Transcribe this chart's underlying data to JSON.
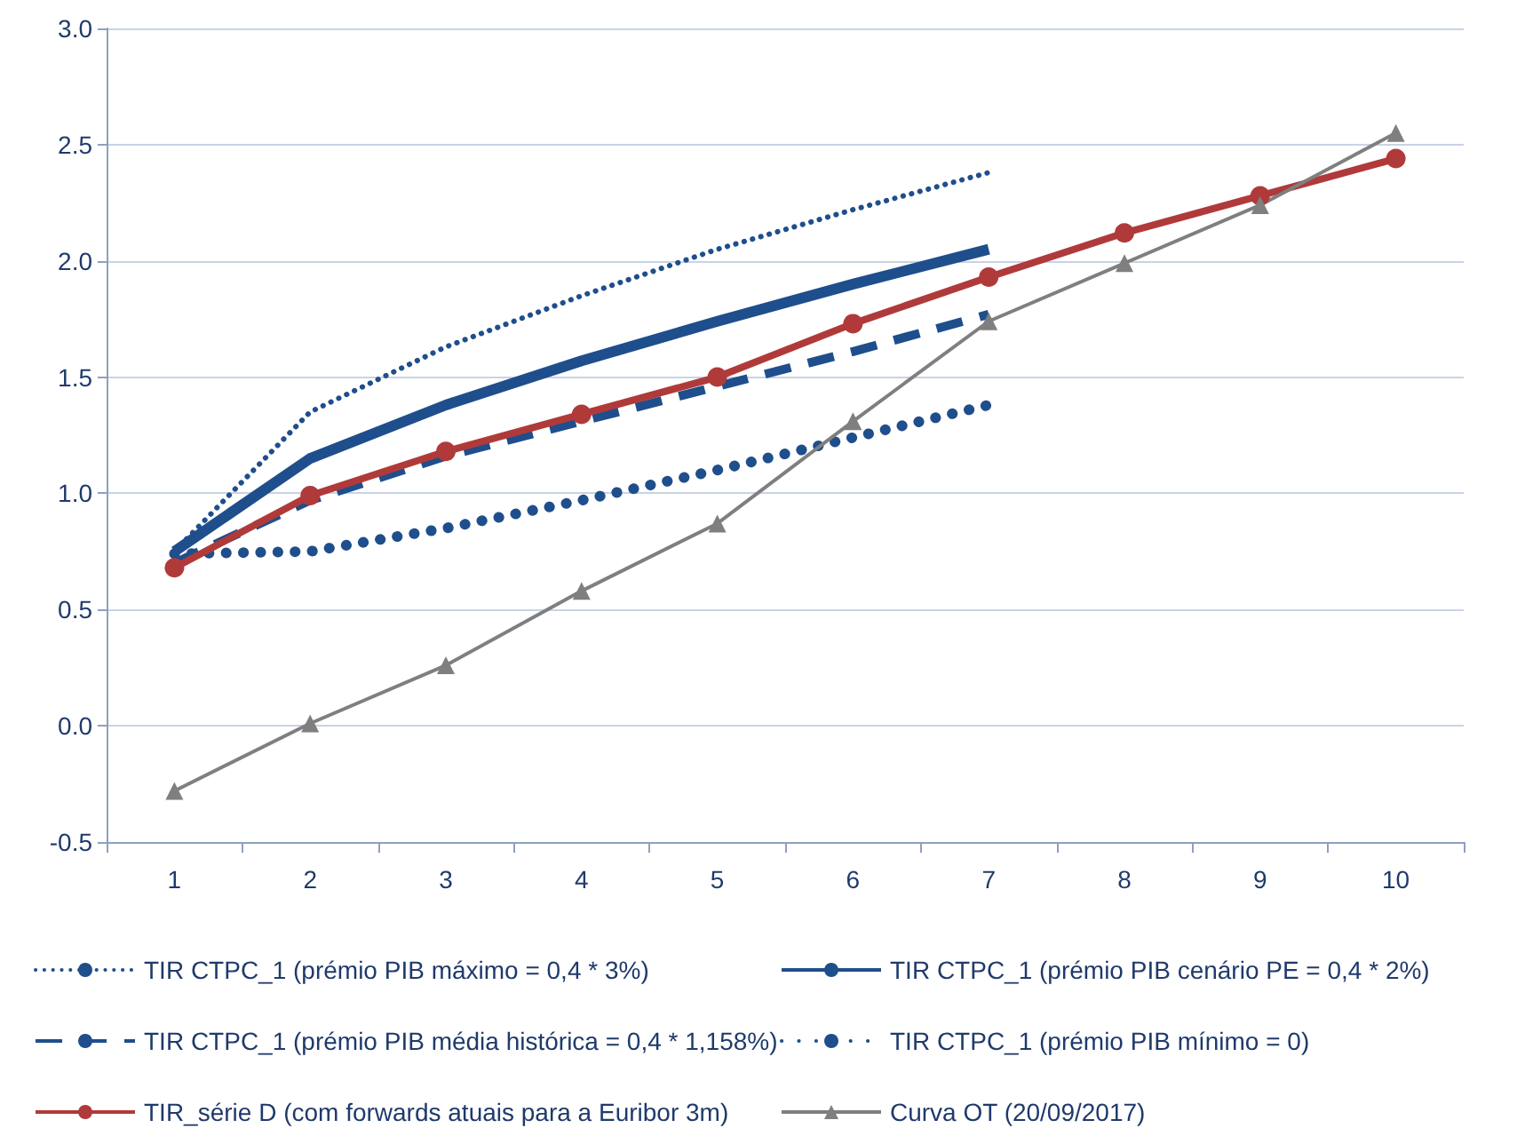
{
  "chart_data": {
    "type": "line",
    "categories": [
      "1",
      "2",
      "3",
      "4",
      "5",
      "6",
      "7",
      "8",
      "9",
      "10"
    ],
    "ylim": [
      -0.5,
      3.0
    ],
    "yticks": [
      {
        "value": -0.5,
        "label": "-0.5"
      },
      {
        "value": 0,
        "label": "0.0"
      },
      {
        "value": 0.5,
        "label": "0.5"
      },
      {
        "value": 1,
        "label": "1.0"
      },
      {
        "value": 1.5,
        "label": "1.5"
      },
      {
        "value": 2,
        "label": "2.0"
      },
      {
        "value": 2.5,
        "label": "2.5"
      },
      {
        "value": 3,
        "label": "3.0"
      }
    ],
    "grid": "y",
    "legend": "bottom",
    "series": [
      {
        "name": "TIR CTPC_1 (prémio PIB máximo = 0,4 * 3%)",
        "color": "#1f4e8c",
        "line_style": "dotted",
        "marker": "none",
        "values": [
          0.75,
          1.35,
          1.63,
          1.85,
          2.05,
          2.22,
          2.38,
          null,
          null,
          null
        ]
      },
      {
        "name": "TIR CTPC_1 (prémio PIB cenário PE = 0,4 * 2%)",
        "color": "#1f4e8c",
        "line_style": "solid",
        "marker": "none",
        "values": [
          0.75,
          1.15,
          1.38,
          1.57,
          1.74,
          1.9,
          2.05,
          null,
          null,
          null
        ]
      },
      {
        "name": "TIR CTPC_1 (prémio PIB média histórica = 0,4 * 1,158%)",
        "color": "#1f4e8c",
        "line_style": "dashed",
        "marker": "none",
        "values": [
          0.7,
          0.97,
          1.16,
          1.31,
          1.46,
          1.61,
          1.77,
          null,
          null,
          null
        ]
      },
      {
        "name": "TIR CTPC_1 (prémio PIB mínimo = 0)",
        "color": "#1f4e8c",
        "line_style": "dotted",
        "marker": "none",
        "values": [
          0.74,
          0.75,
          0.85,
          0.97,
          1.1,
          1.24,
          1.38,
          null,
          null,
          null
        ]
      },
      {
        "name": "TIR_série D (com forwards atuais para a Euribor 3m)",
        "color": "#b03a3a",
        "line_style": "solid",
        "marker": "circle",
        "values": [
          0.68,
          0.99,
          1.18,
          1.34,
          1.5,
          1.73,
          1.93,
          2.12,
          2.28,
          2.44
        ]
      },
      {
        "name": "Curva OT (20/09/2017)",
        "color": "#7f7f7f",
        "line_style": "solid",
        "marker": "triangle",
        "values": [
          -0.28,
          0.01,
          0.26,
          0.58,
          0.87,
          1.31,
          1.74,
          1.99,
          2.24,
          2.55
        ]
      }
    ]
  }
}
